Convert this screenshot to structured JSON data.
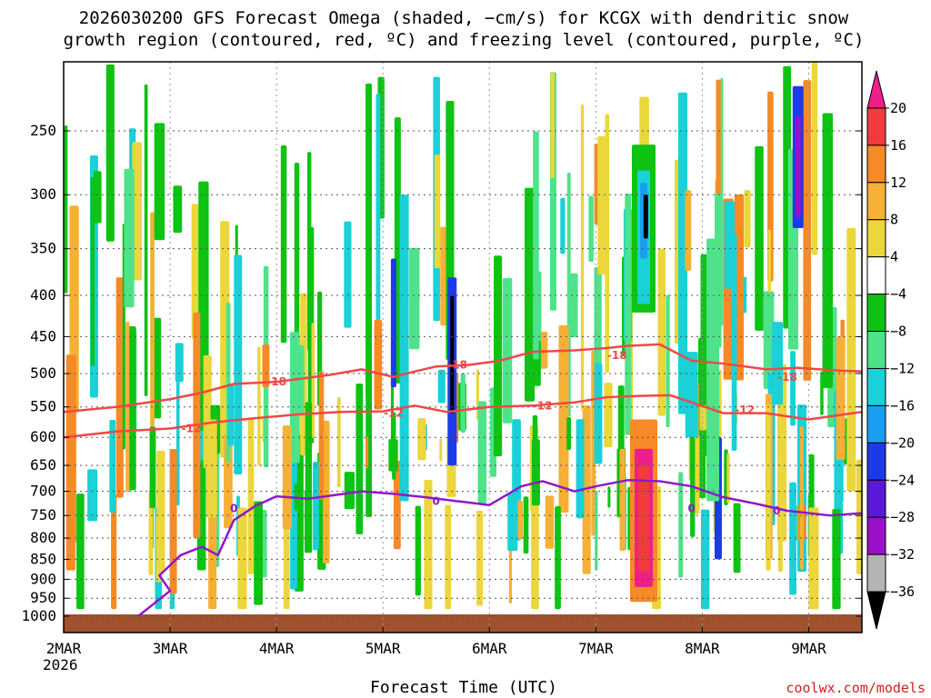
{
  "chart_data": {
    "type": "heatmap",
    "title": [
      "2026030200 GFS Forecast Omega (shaded, −cm/s) for KCGX with dendritic snow",
      "growth region (contoured, red, ºC) and freezing level (contoured, purple, ºC)"
    ],
    "xlabel": "Forecast Time (UTC)",
    "ylabel": "",
    "credit": "coolwx.com/models",
    "x_ticks": [
      "2MAR",
      "3MAR",
      "4MAR",
      "5MAR",
      "6MAR",
      "7MAR",
      "8MAR",
      "9MAR"
    ],
    "x_year": "2026",
    "x_range_days": [
      0,
      7.5
    ],
    "y_range_hpa": [
      1020,
      200
    ],
    "y_ticks": [
      250,
      300,
      350,
      400,
      450,
      500,
      550,
      600,
      650,
      700,
      750,
      800,
      850,
      900,
      950,
      1000
    ],
    "grid": true,
    "colorbar": {
      "levels": [
        "20",
        "16",
        "12",
        "8",
        "4",
        "−4",
        "−8",
        "−12",
        "−16",
        "−20",
        "−24",
        "−28",
        "−32",
        "−36"
      ],
      "colors": [
        "#ef1f8a",
        "#f03c3c",
        "#f58a26",
        "#f5b035",
        "#ebd63b",
        "#ffffff",
        "#0ec314",
        "#4ee38a",
        "#19d1d6",
        "#1a9ef2",
        "#1c3be8",
        "#5a19d6",
        "#9a10c8",
        "#b4b4b4",
        "#000000"
      ]
    },
    "series": [
      {
        "name": "-18",
        "color": "#f04848",
        "label": "-18",
        "points": [
          [
            0,
            558
          ],
          [
            0.5,
            550
          ],
          [
            1,
            538
          ],
          [
            1.3,
            528
          ],
          [
            1.6,
            515
          ],
          [
            2,
            512
          ],
          [
            2.5,
            502
          ],
          [
            2.8,
            494
          ],
          [
            3.1,
            505
          ],
          [
            3.3,
            497
          ],
          [
            3.5,
            490
          ],
          [
            3.8,
            488
          ],
          [
            4.1,
            482
          ],
          [
            4.4,
            470
          ],
          [
            4.8,
            468
          ],
          [
            5.1,
            465
          ],
          [
            5.3,
            462
          ],
          [
            5.6,
            460
          ],
          [
            5.9,
            482
          ],
          [
            6.2,
            486
          ],
          [
            6.6,
            494
          ],
          [
            6.9,
            492
          ],
          [
            7.3,
            496
          ],
          [
            7.5,
            497
          ]
        ],
        "labels_at": [
          [
            2.0,
            512
          ],
          [
            3.7,
            488
          ],
          [
            5.2,
            475
          ],
          [
            6.8,
            505
          ]
        ]
      },
      {
        "name": "-12",
        "color": "#f04848",
        "label": "-12",
        "points": [
          [
            0,
            600
          ],
          [
            0.5,
            590
          ],
          [
            1,
            585
          ],
          [
            1.4,
            575
          ],
          [
            1.8,
            568
          ],
          [
            2.2,
            562
          ],
          [
            2.6,
            558
          ],
          [
            3,
            557
          ],
          [
            3.3,
            548
          ],
          [
            3.6,
            558
          ],
          [
            4,
            550
          ],
          [
            4.4,
            548
          ],
          [
            4.8,
            543
          ],
          [
            5.1,
            535
          ],
          [
            5.4,
            533
          ],
          [
            5.7,
            532
          ],
          [
            6.2,
            560
          ],
          [
            6.6,
            560
          ],
          [
            7.0,
            570
          ],
          [
            7.5,
            558
          ]
        ],
        "labels_at": [
          [
            1.2,
            585
          ],
          [
            3.1,
            560
          ],
          [
            4.5,
            548
          ],
          [
            6.4,
            555
          ]
        ]
      },
      {
        "name": "0",
        "color": "#9018c8",
        "label": "0",
        "points": [
          [
            0.7,
            1000
          ],
          [
            1,
            930
          ],
          [
            0.9,
            890
          ],
          [
            1.1,
            840
          ],
          [
            1.3,
            820
          ],
          [
            1.45,
            840
          ],
          [
            1.6,
            760
          ],
          [
            1.8,
            730
          ],
          [
            2,
            710
          ],
          [
            2.3,
            715
          ],
          [
            2.8,
            700
          ],
          [
            3.1,
            705
          ],
          [
            3.4,
            712
          ],
          [
            3.7,
            720
          ],
          [
            4.0,
            728
          ],
          [
            4.3,
            690
          ],
          [
            4.5,
            680
          ],
          [
            4.8,
            700
          ],
          [
            5.0,
            690
          ],
          [
            5.3,
            678
          ],
          [
            5.6,
            680
          ],
          [
            5.9,
            690
          ],
          [
            6.2,
            712
          ],
          [
            6.5,
            725
          ],
          [
            6.8,
            740
          ],
          [
            7.2,
            750
          ],
          [
            7.5,
            745
          ]
        ],
        "labels_at": [
          [
            1.6,
            735
          ],
          [
            3.5,
            720
          ],
          [
            5.9,
            735
          ],
          [
            6.7,
            740
          ]
        ]
      }
    ],
    "axis_tick_values_hpa": [
      250,
      300,
      350,
      400,
      450,
      500,
      550,
      600,
      650,
      700,
      750,
      800,
      850,
      900,
      950,
      1000
    ]
  }
}
